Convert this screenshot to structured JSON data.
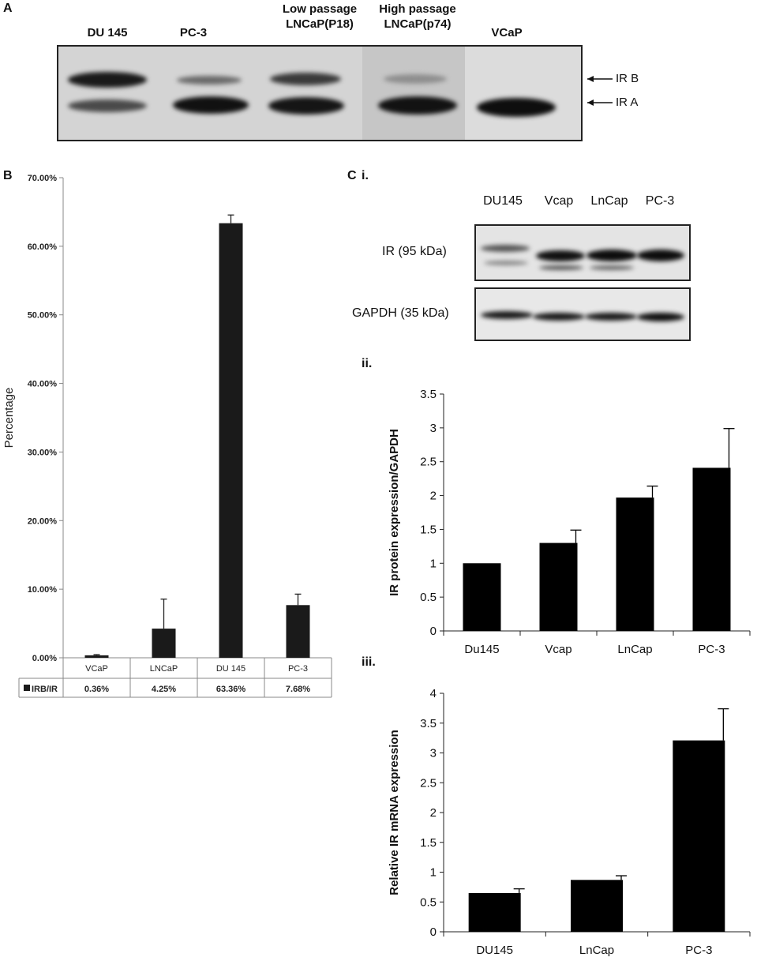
{
  "panel_a": {
    "letter": "A",
    "lanes": [
      {
        "label": "DU 145"
      },
      {
        "label": "PC-3"
      },
      {
        "label": "Low passage\nLNCaP(P18)"
      },
      {
        "label": "High passage\nLNCaP(p74)"
      },
      {
        "label": "VCaP"
      }
    ],
    "arrows": {
      "ir_b": "IR B",
      "ir_a": "IR A"
    }
  },
  "panel_b": {
    "letter": "B",
    "table_legend": "IRB/IR",
    "table_values": [
      "0.36%",
      "4.25%",
      "63.36%",
      "7.68%"
    ]
  },
  "panel_c": {
    "letter": "C",
    "sub_i": "i.",
    "sub_ii": "ii.",
    "sub_iii": "iii.",
    "wb_lanes": [
      "DU145",
      "Vcap",
      "LnCap",
      "PC-3"
    ],
    "wb_rows": {
      "ir": "IR (95 kDa)",
      "gapdh": "GAPDH (35 kDa)"
    }
  },
  "colors": {
    "bar": "#1a1a1a",
    "axis": "#888888",
    "text": "#111111"
  },
  "chart_data": [
    {
      "id": "B",
      "type": "bar",
      "categories": [
        "VCaP",
        "LNCaP",
        "DU 145",
        "PC-3"
      ],
      "values": [
        0.36,
        4.25,
        63.36,
        7.68
      ],
      "errors": [
        0.1,
        4.3,
        1.2,
        1.6
      ],
      "ylabel": "Percentage",
      "ylim": [
        0,
        70
      ],
      "yticks": [
        "0.00%",
        "10.00%",
        "20.00%",
        "30.00%",
        "40.00%",
        "50.00%",
        "60.00%",
        "70.00%"
      ],
      "series": [
        {
          "name": "IRB/IR",
          "values": [
            0.36,
            4.25,
            63.36,
            7.68
          ]
        }
      ],
      "grid": false
    },
    {
      "id": "C_ii",
      "type": "bar",
      "categories": [
        "Du145",
        "Vcap",
        "LnCap",
        "PC-3"
      ],
      "values": [
        1.0,
        1.3,
        1.97,
        2.41
      ],
      "errors": [
        0,
        0.19,
        0.17,
        0.58
      ],
      "ylabel": "IR protein expression/GAPDH",
      "ylim": [
        0,
        3.5
      ],
      "yticks": [
        "0",
        "0.5",
        "1",
        "1.5",
        "2",
        "2.5",
        "3",
        "3.5"
      ],
      "grid": false
    },
    {
      "id": "C_iii",
      "type": "bar",
      "categories": [
        "DU145",
        "LnCap",
        "PC-3"
      ],
      "values": [
        0.65,
        0.87,
        3.21
      ],
      "errors": [
        0.07,
        0.07,
        0.53
      ],
      "ylabel": "Relative IR mRNA expression",
      "ylim": [
        0,
        4
      ],
      "yticks": [
        "0",
        "0.5",
        "1",
        "1.5",
        "2",
        "2.5",
        "3",
        "3.5",
        "4"
      ],
      "grid": false
    }
  ]
}
